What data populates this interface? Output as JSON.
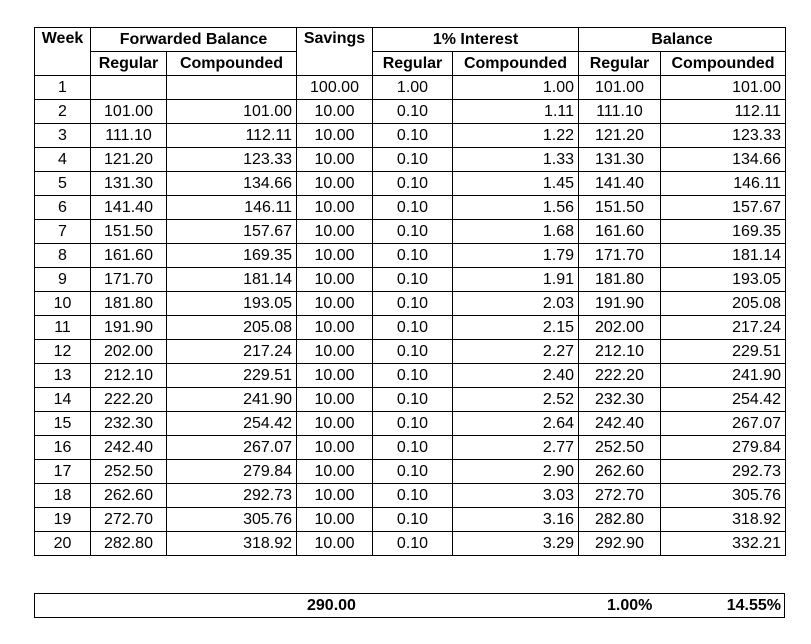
{
  "header": {
    "top": [
      "Week",
      "Forwarded Balance",
      "Savings",
      "1% Interest",
      "Balance"
    ],
    "sub": [
      "Regular",
      "Compounded",
      "Regular",
      "Compounded",
      "Regular",
      "Compounded"
    ]
  },
  "rows": [
    [
      "1",
      null,
      null,
      "100.00",
      "1.00",
      "1.00",
      "101.00",
      "101.00"
    ],
    [
      "2",
      "101.00",
      "101.00",
      "10.00",
      "0.10",
      "1.11",
      "111.10",
      "112.11"
    ],
    [
      "3",
      "111.10",
      "112.11",
      "10.00",
      "0.10",
      "1.22",
      "121.20",
      "123.33"
    ],
    [
      "4",
      "121.20",
      "123.33",
      "10.00",
      "0.10",
      "1.33",
      "131.30",
      "134.66"
    ],
    [
      "5",
      "131.30",
      "134.66",
      "10.00",
      "0.10",
      "1.45",
      "141.40",
      "146.11"
    ],
    [
      "6",
      "141.40",
      "146.11",
      "10.00",
      "0.10",
      "1.56",
      "151.50",
      "157.67"
    ],
    [
      "7",
      "151.50",
      "157.67",
      "10.00",
      "0.10",
      "1.68",
      "161.60",
      "169.35"
    ],
    [
      "8",
      "161.60",
      "169.35",
      "10.00",
      "0.10",
      "1.79",
      "171.70",
      "181.14"
    ],
    [
      "9",
      "171.70",
      "181.14",
      "10.00",
      "0.10",
      "1.91",
      "181.80",
      "193.05"
    ],
    [
      "10",
      "181.80",
      "193.05",
      "10.00",
      "0.10",
      "2.03",
      "191.90",
      "205.08"
    ],
    [
      "11",
      "191.90",
      "205.08",
      "10.00",
      "0.10",
      "2.15",
      "202.00",
      "217.24"
    ],
    [
      "12",
      "202.00",
      "217.24",
      "10.00",
      "0.10",
      "2.27",
      "212.10",
      "229.51"
    ],
    [
      "13",
      "212.10",
      "229.51",
      "10.00",
      "0.10",
      "2.40",
      "222.20",
      "241.90"
    ],
    [
      "14",
      "222.20",
      "241.90",
      "10.00",
      "0.10",
      "2.52",
      "232.30",
      "254.42"
    ],
    [
      "15",
      "232.30",
      "254.42",
      "10.00",
      "0.10",
      "2.64",
      "242.40",
      "267.07"
    ],
    [
      "16",
      "242.40",
      "267.07",
      "10.00",
      "0.10",
      "2.77",
      "252.50",
      "279.84"
    ],
    [
      "17",
      "252.50",
      "279.84",
      "10.00",
      "0.10",
      "2.90",
      "262.60",
      "292.73"
    ],
    [
      "18",
      "262.60",
      "292.73",
      "10.00",
      "0.10",
      "3.03",
      "272.70",
      "305.76"
    ],
    [
      "19",
      "272.70",
      "305.76",
      "10.00",
      "0.10",
      "3.16",
      "282.80",
      "318.92"
    ],
    [
      "20",
      "282.80",
      "318.92",
      "10.00",
      "0.10",
      "3.29",
      "292.90",
      "332.21"
    ]
  ],
  "summary": {
    "savings": "290.00",
    "regular": "1.00%",
    "compounded": "14.55%"
  }
}
